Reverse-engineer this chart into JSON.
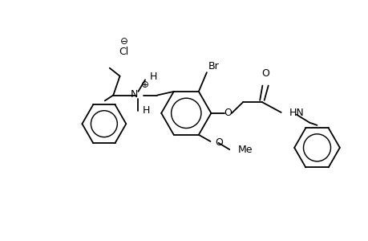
{
  "background": "#ffffff",
  "line_color": "#000000",
  "line_width": 1.3,
  "font_size": 9,
  "figsize": [
    4.6,
    3.0
  ],
  "dpi": 100,
  "xlim": [
    0,
    10
  ],
  "ylim": [
    0,
    6.5
  ]
}
